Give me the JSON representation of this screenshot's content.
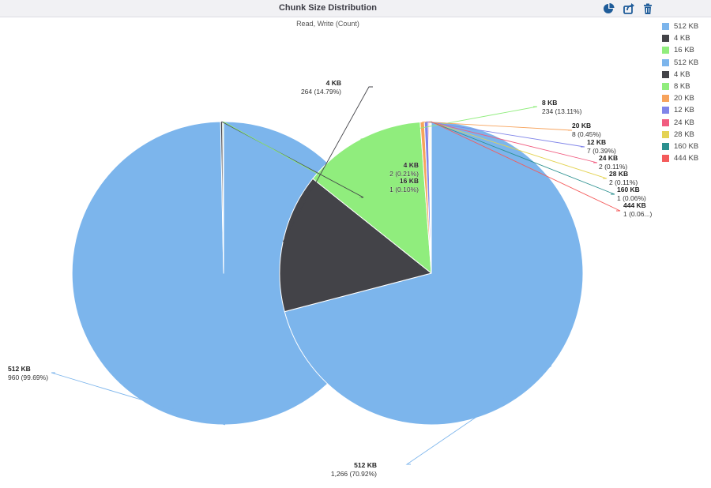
{
  "header": {
    "title": "Chunk Size Distribution",
    "pie_icon": "pie-chart-icon",
    "export_icon": "export-icon",
    "delete_icon": "trash-icon"
  },
  "chart_data": {
    "type": "pie",
    "title": "Chunk Size Distribution",
    "subtitle": "Read, Write (Count)",
    "series": [
      {
        "slices": [
          {
            "label": "512 KB",
            "value": 960,
            "display": "960",
            "percent": "99.69%",
            "color": "#7cb5ec"
          },
          {
            "label": "4 KB",
            "value": 2,
            "display": "2",
            "percent": "0.21%",
            "color": "#434348"
          },
          {
            "label": "16 KB",
            "value": 1,
            "display": "1",
            "percent": "0.10%",
            "color": "#90ed7d"
          }
        ]
      },
      {
        "slices": [
          {
            "label": "512 KB",
            "value": 1266,
            "display": "1,266",
            "percent": "70.92%",
            "color": "#7cb5ec"
          },
          {
            "label": "4 KB",
            "value": 264,
            "display": "264",
            "percent": "14.79%",
            "color": "#434348"
          },
          {
            "label": "8 KB",
            "value": 234,
            "display": "234",
            "percent": "13.11%",
            "color": "#90ed7d"
          },
          {
            "label": "20 KB",
            "value": 8,
            "display": "8",
            "percent": "0.45%",
            "color": "#f7a35c"
          },
          {
            "label": "12 KB",
            "value": 7,
            "display": "7",
            "percent": "0.39%",
            "color": "#8085e9"
          },
          {
            "label": "24 KB",
            "value": 2,
            "display": "2",
            "percent": "0.11%",
            "color": "#f15c80"
          },
          {
            "label": "28 KB",
            "value": 2,
            "display": "2",
            "percent": "0.11%",
            "color": "#e4d354"
          },
          {
            "label": "160 KB",
            "value": 1,
            "display": "1",
            "percent": "0.06%",
            "color": "#2b908f"
          },
          {
            "label": "444 KB",
            "value": 1,
            "display": "1",
            "percent": "0.06...",
            "color": "#f45b5b"
          }
        ]
      }
    ],
    "legend": [
      {
        "label": "512 KB",
        "color": "#7cb5ec"
      },
      {
        "label": "4 KB",
        "color": "#434348"
      },
      {
        "label": "16 KB",
        "color": "#90ed7d"
      },
      {
        "label": "512 KB",
        "color": "#7cb5ec"
      },
      {
        "label": "4 KB",
        "color": "#434348"
      },
      {
        "label": "8 KB",
        "color": "#90ed7d"
      },
      {
        "label": "20 KB",
        "color": "#f7a35c"
      },
      {
        "label": "12 KB",
        "color": "#8085e9"
      },
      {
        "label": "24 KB",
        "color": "#f15c80"
      },
      {
        "label": "28 KB",
        "color": "#e4d354"
      },
      {
        "label": "160 KB",
        "color": "#2b908f"
      },
      {
        "label": "444 KB",
        "color": "#f45b5b"
      }
    ],
    "legend_position": "right"
  }
}
